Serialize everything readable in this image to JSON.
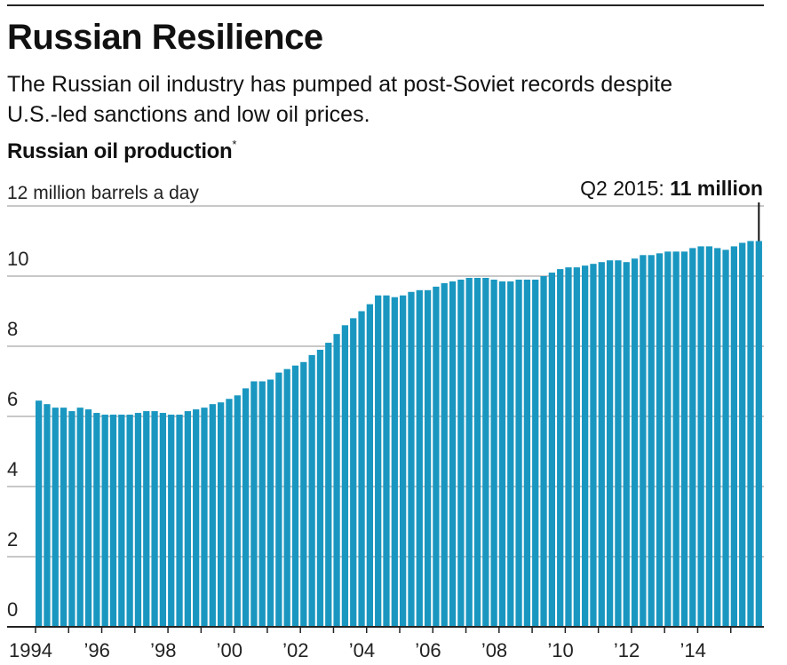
{
  "title": "Russian Resilience",
  "subtitle": "The Russian oil industry has pumped at post-Soviet records despite U.S.-led sanctions and low oil prices.",
  "chart_title": "Russian oil production",
  "chart_footnote_marker": "*",
  "colors": {
    "bar": "#1a97c0",
    "grid": "#c8c8c8",
    "axis": "#222222"
  },
  "chart_data": {
    "type": "bar",
    "title": "Russian oil production",
    "ylabel": "million barrels a day",
    "ylim": [
      0,
      12
    ],
    "yticks": [
      0,
      2,
      4,
      6,
      8,
      10,
      12
    ],
    "ytick_labels": [
      "0",
      "2",
      "4",
      "6",
      "8",
      "10",
      "12 million barrels a day"
    ],
    "xtick_labels": [
      "1994",
      "’96",
      "’98",
      "’00",
      "’02",
      "’04",
      "’06",
      "’08",
      "’10",
      "’12",
      "’14"
    ],
    "x_start_year": 1994,
    "grid": true,
    "annotation": {
      "label": "Q2 2015: ",
      "value_text": "11 million",
      "period": "Q2 2015",
      "value": 11
    },
    "values": [
      6.45,
      6.35,
      6.25,
      6.25,
      6.15,
      6.25,
      6.2,
      6.1,
      6.05,
      6.05,
      6.05,
      6.05,
      6.1,
      6.15,
      6.15,
      6.1,
      6.05,
      6.05,
      6.15,
      6.2,
      6.25,
      6.35,
      6.4,
      6.5,
      6.6,
      6.8,
      7.0,
      7.0,
      7.05,
      7.25,
      7.35,
      7.45,
      7.55,
      7.75,
      7.9,
      8.1,
      8.35,
      8.6,
      8.8,
      9.0,
      9.2,
      9.45,
      9.45,
      9.4,
      9.45,
      9.55,
      9.6,
      9.6,
      9.7,
      9.8,
      9.85,
      9.9,
      9.95,
      9.95,
      9.95,
      9.9,
      9.85,
      9.85,
      9.9,
      9.9,
      9.9,
      10.0,
      10.1,
      10.2,
      10.25,
      10.25,
      10.3,
      10.35,
      10.4,
      10.45,
      10.45,
      10.4,
      10.5,
      10.6,
      10.6,
      10.65,
      10.7,
      10.7,
      10.7,
      10.8,
      10.85,
      10.85,
      10.8,
      10.75,
      10.85,
      10.95,
      11.0,
      11.0
    ]
  }
}
